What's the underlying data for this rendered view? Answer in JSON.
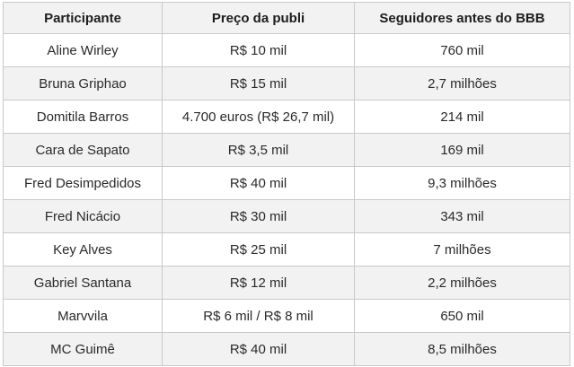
{
  "table": {
    "headers": {
      "participant": "Participante",
      "price": "Preço da publi",
      "followers": "Seguidores antes do BBB"
    },
    "rows": [
      {
        "participant": "Aline Wirley",
        "price": "R$ 10 mil",
        "followers": "760 mil"
      },
      {
        "participant": "Bruna Griphao",
        "price": "R$ 15 mil",
        "followers": "2,7 milhões"
      },
      {
        "participant": "Domitila Barros",
        "price": "4.700 euros (R$ 26,7 mil)",
        "followers": "214 mil"
      },
      {
        "participant": "Cara de Sapato",
        "price": "R$ 3,5 mil",
        "followers": "169 mil"
      },
      {
        "participant": "Fred Desimpedidos",
        "price": "R$ 40 mil",
        "followers": "9,3 milhões"
      },
      {
        "participant": "Fred Nicácio",
        "price": "R$ 30 mil",
        "followers": "343 mil"
      },
      {
        "participant": "Key Alves",
        "price": "R$ 25 mil",
        "followers": "7 milhões"
      },
      {
        "participant": "Gabriel Santana",
        "price": "R$ 12 mil",
        "followers": "2,2 milhões"
      },
      {
        "participant": "Marvvila",
        "price": "R$ 6 mil / R$ 8 mil",
        "followers": "650 mil"
      },
      {
        "participant": "MC Guimê",
        "price": "R$ 40 mil",
        "followers": "8,5 milhões"
      }
    ]
  }
}
